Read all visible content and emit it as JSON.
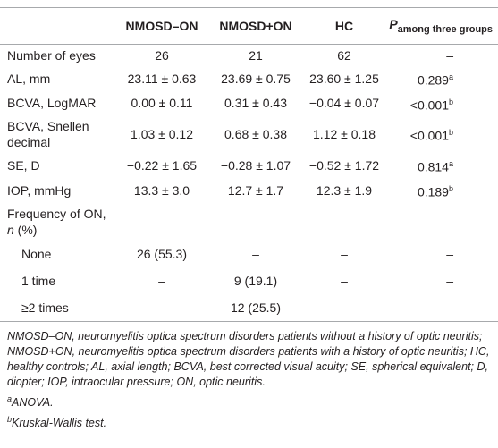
{
  "table": {
    "header": {
      "columns": [
        "NMOSD–ON",
        "NMOSD+ON",
        "HC"
      ],
      "p_label": "P",
      "p_subscript": "among three groups"
    },
    "rows": [
      {
        "label": "Number of eyes",
        "cells": [
          "26",
          "21",
          "62"
        ],
        "p": {
          "text": "–"
        }
      },
      {
        "label": "AL, mm",
        "cells": [
          "23.11 ± 0.63",
          "23.69 ± 0.75",
          "23.60 ± 1.25"
        ],
        "p": {
          "text": "0.289",
          "note": "a"
        }
      },
      {
        "label": "BCVA, LogMAR",
        "cells": [
          "0.00 ± 0.11",
          "0.31 ± 0.43",
          "−0.04 ± 0.07"
        ],
        "p": {
          "text": "<0.001",
          "note": "b"
        }
      },
      {
        "label": "BCVA, Snellen decimal",
        "cells": [
          "1.03 ± 0.12",
          "0.68 ± 0.38",
          "1.12 ± 0.18"
        ],
        "p": {
          "text": "<0.001",
          "note": "b"
        }
      },
      {
        "label": "SE, D",
        "cells": [
          "−0.22 ± 1.65",
          "−0.28 ± 1.07",
          "−0.52 ± 1.72"
        ],
        "p": {
          "text": "0.814",
          "note": "a"
        }
      },
      {
        "label": "IOP, mmHg",
        "cells": [
          "13.3 ± 3.0",
          "12.7 ± 1.7",
          "12.3 ± 1.9"
        ],
        "p": {
          "text": "0.189",
          "note": "b"
        }
      }
    ],
    "frequency": {
      "label_parts": [
        "Frequency of ON, ",
        "n",
        " (%)"
      ],
      "rows": [
        {
          "label": "None",
          "cells": [
            "26 (55.3)",
            "–",
            "–"
          ],
          "p": {
            "text": "–"
          }
        },
        {
          "label": "1 time",
          "cells": [
            "–",
            "9 (19.1)",
            "–"
          ],
          "p": {
            "text": "–"
          }
        },
        {
          "label": "≥2 times",
          "cells": [
            "–",
            "12 (25.5)",
            "–"
          ],
          "p": {
            "text": "–"
          }
        }
      ]
    }
  },
  "footnotes": {
    "abbreviations": "NMOSD–ON, neuromyelitis optica spectrum disorders patients without a history of optic neuritis; NMOSD+ON, neuromyelitis optica spectrum disorders patients with a history of optic neuritis; HC, healthy controls; AL, axial length; BCVA, best corrected visual acuity; SE, spherical equivalent; D, diopter; IOP, intraocular pressure; ON, optic neuritis.",
    "notes": [
      {
        "mark": "a",
        "text": "ANOVA."
      },
      {
        "mark": "b",
        "text": "Kruskal-Wallis test."
      }
    ]
  }
}
